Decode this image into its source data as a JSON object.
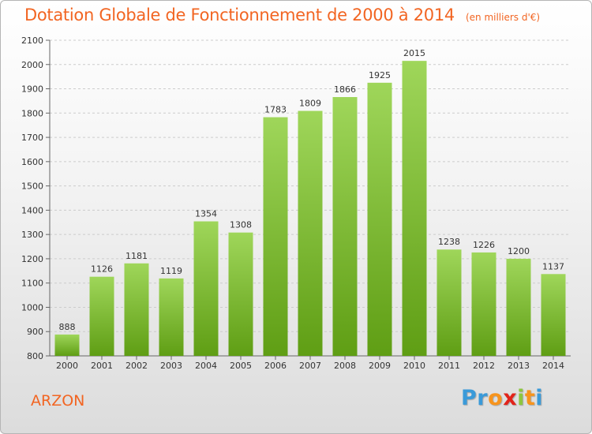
{
  "title": "Dotation Globale de Fonctionnement de 2000 à 2014",
  "unit": "(en milliers d'€)",
  "commune": "ARZON",
  "logo": {
    "letters": [
      "P",
      "r",
      "o",
      "x",
      "i",
      "t",
      "i"
    ],
    "colors": [
      "#3a9ad9",
      "#3a9ad9",
      "#f7941d",
      "#e2231a",
      "#8dc63f",
      "#f7941d",
      "#3a9ad9"
    ]
  },
  "colors": {
    "bar_top": "#9fd65a",
    "bar_bottom": "#5f9e14",
    "title": "#f26522",
    "grid": "#cccccc"
  },
  "chart_data": {
    "type": "bar",
    "categories": [
      "2000",
      "2001",
      "2002",
      "2003",
      "2004",
      "2005",
      "2006",
      "2007",
      "2008",
      "2009",
      "2010",
      "2011",
      "2012",
      "2013",
      "2014"
    ],
    "values": [
      888,
      1126,
      1181,
      1119,
      1354,
      1308,
      1783,
      1809,
      1866,
      1925,
      2015,
      1238,
      1226,
      1200,
      1137
    ],
    "ylim": [
      800,
      2100
    ],
    "yticks": [
      800,
      900,
      1000,
      1100,
      1200,
      1300,
      1400,
      1500,
      1600,
      1700,
      1800,
      1900,
      2000,
      2100
    ],
    "grid": true,
    "data_labels": true
  }
}
